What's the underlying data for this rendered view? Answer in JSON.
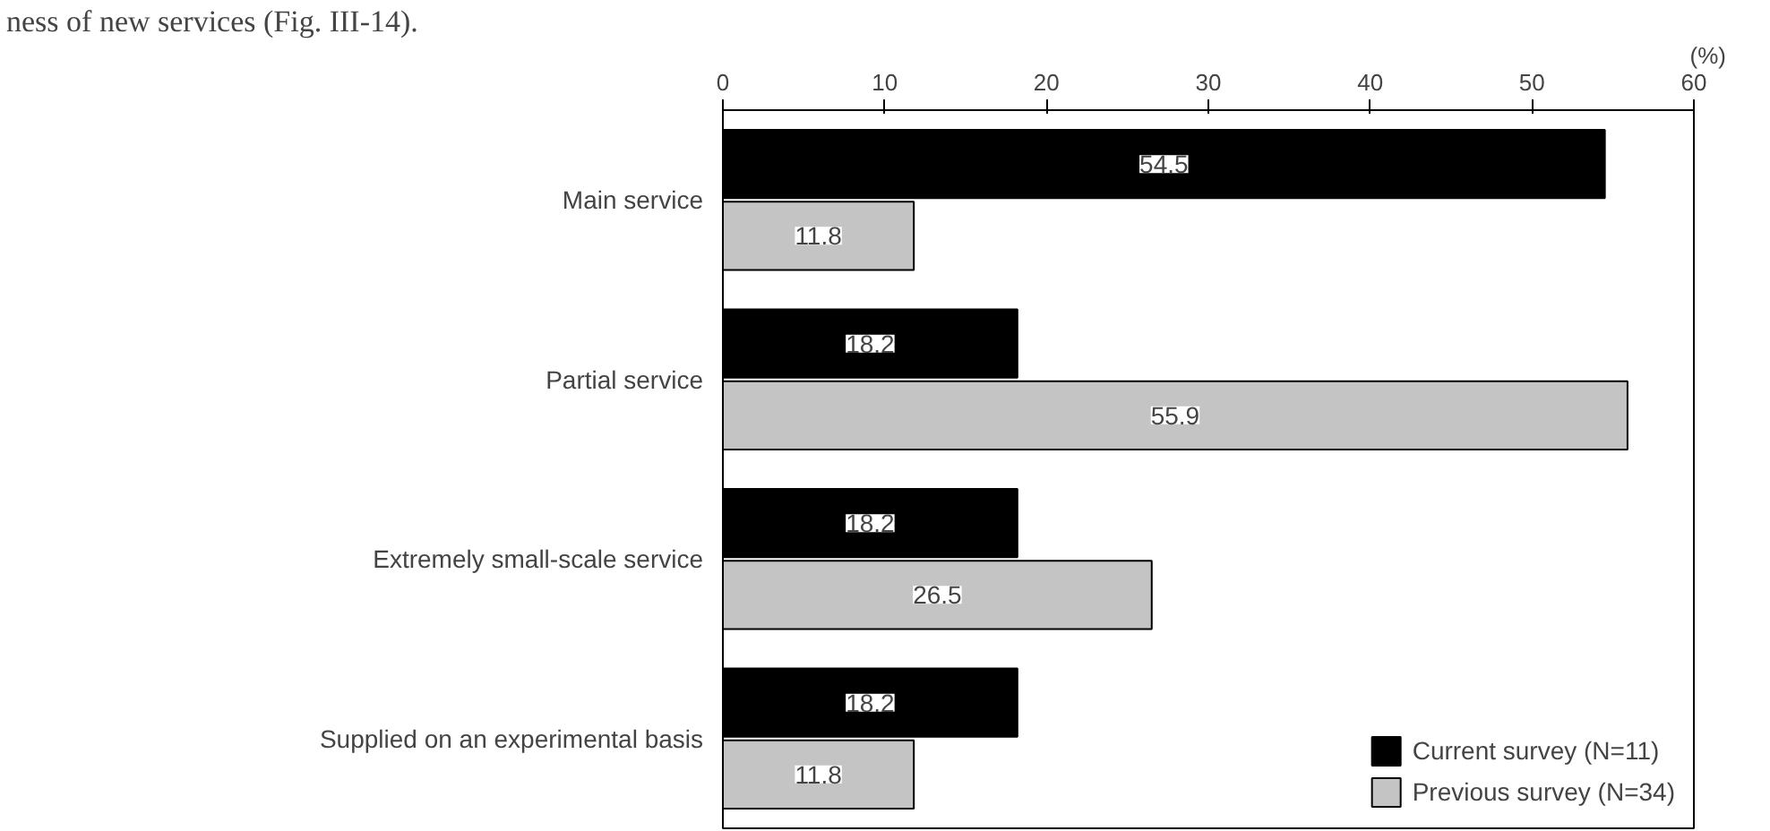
{
  "chart_data": {
    "type": "bar",
    "orientation": "horizontal",
    "xlabel": "(%)",
    "annotations": [
      "ness of new services (Fig. III-14)."
    ],
    "categories": [
      "Main service",
      "Partial service",
      "Extremely small-scale service",
      "Supplied on an experimental basis"
    ],
    "series": [
      {
        "name": "Current survey (N=11)",
        "color": "#000000",
        "values": [
          54.5,
          18.2,
          18.2,
          18.2
        ]
      },
      {
        "name": "Previous survey (N=34)",
        "color": "#c4c4c4",
        "values": [
          11.8,
          55.9,
          26.5,
          11.8
        ]
      }
    ],
    "xlim": [
      0,
      60
    ],
    "xticks": [
      0,
      10,
      20,
      30,
      40,
      50,
      60
    ],
    "data_labels": true,
    "grid": false,
    "legend": "bottom right"
  }
}
